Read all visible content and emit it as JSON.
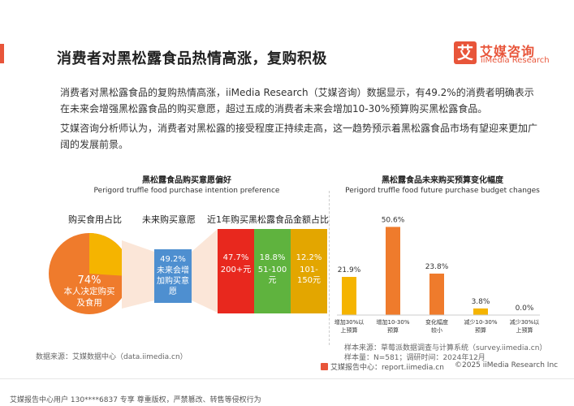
{
  "header": {
    "title": "消费者对黑松露食品热情高涨，复购积极",
    "logo_cn": "艾媒咨询",
    "logo_en": "iiMedia Research",
    "logo_badge": "艾"
  },
  "paragraphs": [
    "消费者对黑松露食品的复购热情高涨，iiMedia Research（艾媒咨询）数据显示，有49.2%的消费者明确表示在未来会增强黑松露食品的购买意愿，超过五成的消费者未来会增加10-30%预算购买黑松露食品。",
    "艾媒咨询分析师认为，消费者对黑松露的接受程度正持续走高，这一趋势预示着黑松露食品市场有望迎来更加广阔的发展前景。"
  ],
  "left_chart": {
    "title": "黑松露食品购买意愿偏好",
    "subtitle": "Perigord truffle food purchase intention preference",
    "col_headers": [
      "购买食用占比",
      "未来购买意愿",
      "近1年购买黑松露食品金额占比"
    ],
    "pie_main_value": "74%",
    "pie_main_label": "本人决定购买及食用",
    "pie_main_pct": 74,
    "intention_value": "49.2%",
    "intention_label": "未来会增加购买意愿",
    "bars": [
      {
        "value": "47.7%",
        "label": "200+元",
        "color": "#e8281e"
      },
      {
        "value": "18.8%",
        "label": "51-100元",
        "color": "#5fb33e"
      },
      {
        "value": "12.2%",
        "label": "101-150元",
        "color": "#e3a600"
      }
    ],
    "source": "数据来源：艾媒数据中心（data.iimedia.cn）",
    "colors": {
      "pie": "#ef7b2c",
      "pie_light": "#f5b400",
      "intention": "#4e8fd0"
    }
  },
  "chart_data": {
    "type": "bar",
    "title": "黑松露食品未来购买预算变化幅度",
    "subtitle": "Perigord truffle food future purchase budget changes",
    "categories": [
      "增加30%以上预算",
      "增加10-30%预算",
      "变化幅度较小",
      "减少10-30%预算",
      "减少30%以上预算"
    ],
    "values": [
      21.9,
      50.6,
      23.8,
      3.8,
      0.0
    ],
    "value_labels": [
      "21.9%",
      "50.6%",
      "23.8%",
      "3.8%",
      "0.0%"
    ],
    "ylim": [
      0,
      55
    ],
    "colors": [
      "#f5b400",
      "#ef7b2c",
      "#ef7b2c",
      "#f5b400",
      "#f5b400"
    ]
  },
  "right_source": {
    "line1": "样本来源：草莓派数据调查与计算系统（survey.iimedia.cn）",
    "line2": "样本量：N=581；调研时间：2024年12月"
  },
  "footer": {
    "report": "艾媒报告中心：report.iimedia.cn",
    "copyright": "©2025  iiMedia Research  Inc",
    "notice": "艾媒报告中心用户 130****6837 专享 尊重版权，严禁篡改、转售等侵权行为"
  }
}
